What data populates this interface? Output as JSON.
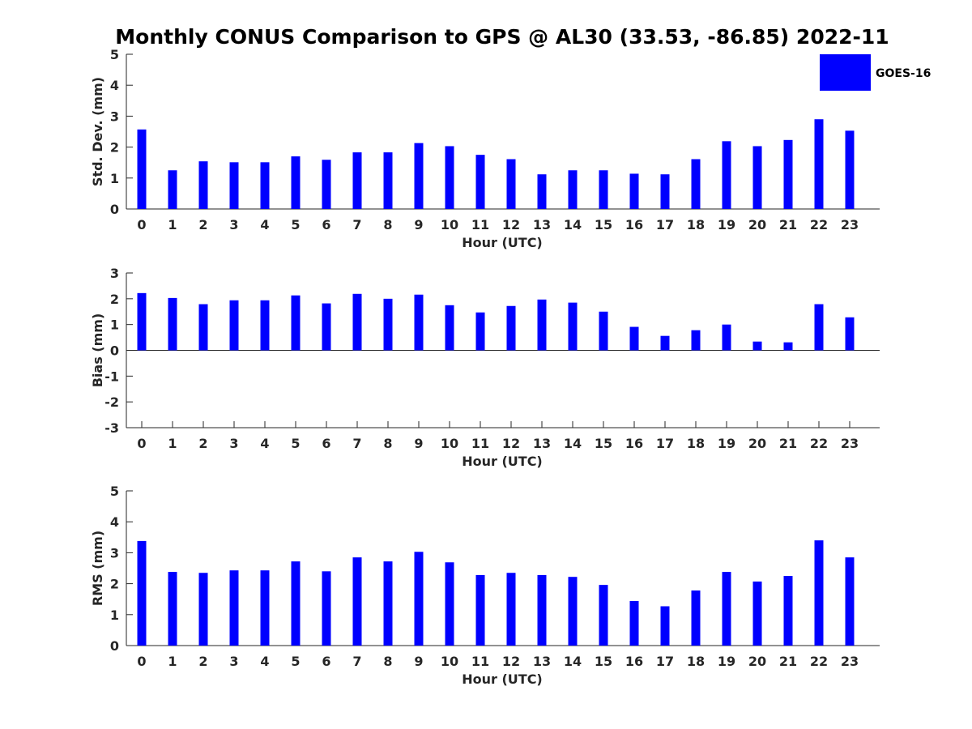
{
  "title": "Monthly CONUS Comparison to GPS @ AL30 (33.53, -86.85) 2022-11",
  "legend": {
    "label": "GOES-16",
    "color": "#0000ff"
  },
  "bar_color": "#0000ff",
  "chart_data": [
    {
      "type": "bar",
      "xlabel": "Hour (UTC)",
      "ylabel": "Std. Dev. (mm)",
      "ylim": [
        0,
        5
      ],
      "yticks": [
        0,
        1,
        2,
        3,
        4,
        5
      ],
      "categories": [
        "0",
        "1",
        "2",
        "3",
        "4",
        "5",
        "6",
        "7",
        "8",
        "9",
        "10",
        "11",
        "12",
        "13",
        "14",
        "15",
        "16",
        "17",
        "18",
        "19",
        "20",
        "21",
        "22",
        "23"
      ],
      "series": [
        {
          "name": "GOES-16",
          "values": [
            2.57,
            1.25,
            1.54,
            1.51,
            1.51,
            1.7,
            1.59,
            1.83,
            1.83,
            2.13,
            2.03,
            1.75,
            1.61,
            1.12,
            1.25,
            1.25,
            1.14,
            1.12,
            1.61,
            2.19,
            2.03,
            2.23,
            2.9,
            2.53
          ]
        }
      ]
    },
    {
      "type": "bar",
      "xlabel": "Hour (UTC)",
      "ylabel": "Bias (mm)",
      "ylim": [
        -3,
        3
      ],
      "yticks": [
        -3,
        -2,
        -1,
        0,
        1,
        2,
        3
      ],
      "categories": [
        "0",
        "1",
        "2",
        "3",
        "4",
        "5",
        "6",
        "7",
        "8",
        "9",
        "10",
        "11",
        "12",
        "13",
        "14",
        "15",
        "16",
        "17",
        "18",
        "19",
        "20",
        "21",
        "22",
        "23"
      ],
      "series": [
        {
          "name": "GOES-16",
          "values": [
            2.22,
            2.03,
            1.79,
            1.94,
            1.94,
            2.13,
            1.82,
            2.19,
            2.0,
            2.16,
            1.75,
            1.47,
            1.72,
            1.97,
            1.85,
            1.5,
            0.91,
            0.56,
            0.78,
            1.0,
            0.34,
            0.31,
            1.79,
            1.28
          ]
        }
      ]
    },
    {
      "type": "bar",
      "xlabel": "Hour (UTC)",
      "ylabel": "RMS (mm)",
      "ylim": [
        0,
        5
      ],
      "yticks": [
        0,
        1,
        2,
        3,
        4,
        5
      ],
      "categories": [
        "0",
        "1",
        "2",
        "3",
        "4",
        "5",
        "6",
        "7",
        "8",
        "9",
        "10",
        "11",
        "12",
        "13",
        "14",
        "15",
        "16",
        "17",
        "18",
        "19",
        "20",
        "21",
        "22",
        "23"
      ],
      "series": [
        {
          "name": "GOES-16",
          "values": [
            3.38,
            2.38,
            2.35,
            2.43,
            2.43,
            2.72,
            2.4,
            2.85,
            2.72,
            3.03,
            2.69,
            2.28,
            2.35,
            2.28,
            2.22,
            1.96,
            1.44,
            1.27,
            1.78,
            2.38,
            2.07,
            2.25,
            3.4,
            2.85
          ]
        }
      ]
    }
  ]
}
